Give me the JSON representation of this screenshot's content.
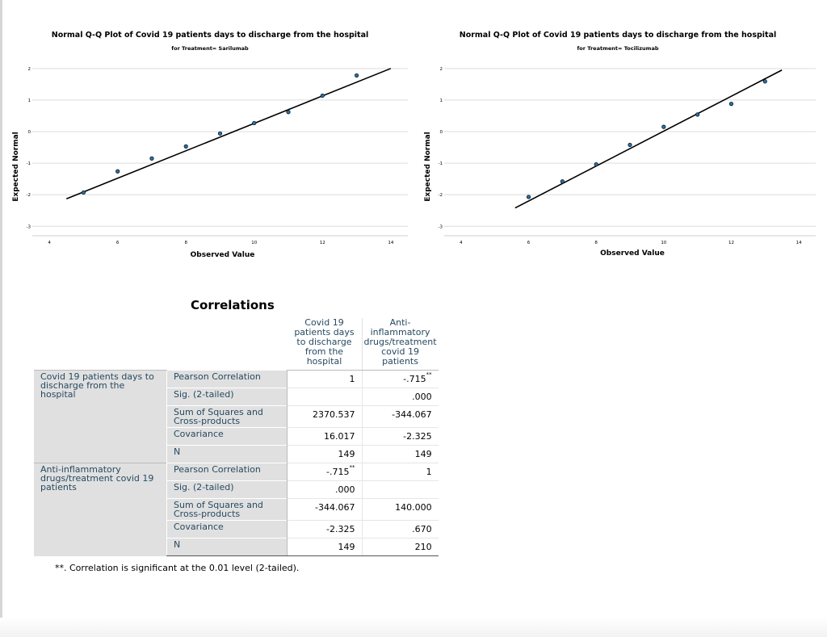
{
  "chart_data": [
    {
      "type": "scatter",
      "title": "Normal Q-Q Plot of Covid 19 patients days to discharge from the hospital",
      "subtitle": "for Treatment= Sarilumab",
      "xlabel": "Observed Value",
      "ylabel": "Expected Normal",
      "xlim": [
        3.5,
        14.5
      ],
      "ylim": [
        -3.3,
        2.2
      ],
      "xticks": [
        4,
        6,
        8,
        10,
        12,
        14
      ],
      "yticks": [
        2,
        1,
        0,
        -1,
        -2,
        -3
      ],
      "grid": "horizontal",
      "points": [
        [
          5,
          -1.93
        ],
        [
          6,
          -1.26
        ],
        [
          7,
          -0.85
        ],
        [
          8,
          -0.47
        ],
        [
          9,
          -0.06
        ],
        [
          10,
          0.27
        ],
        [
          11,
          0.62
        ],
        [
          12,
          1.14
        ],
        [
          13,
          1.78
        ]
      ],
      "ref_line": [
        [
          4.5,
          -2.13
        ],
        [
          14,
          2.0
        ]
      ]
    },
    {
      "type": "scatter",
      "title": "Normal Q-Q Plot of Covid 19 patients days to discharge from the hospital",
      "subtitle": "for Treatment= Tocilizumab",
      "xlabel": "Observed Value",
      "ylabel": "Expected Normal",
      "xlim": [
        3.5,
        14.5
      ],
      "ylim": [
        -3.3,
        2.2
      ],
      "xticks": [
        4,
        6,
        8,
        10,
        12,
        14
      ],
      "yticks": [
        2,
        1,
        0,
        -1,
        -2,
        -3
      ],
      "grid": "horizontal",
      "points": [
        [
          6,
          -2.07
        ],
        [
          7,
          -1.58
        ],
        [
          8,
          -1.04
        ],
        [
          9,
          -0.42
        ],
        [
          10,
          0.15
        ],
        [
          11,
          0.54
        ],
        [
          12,
          0.88
        ],
        [
          13,
          1.59
        ]
      ],
      "ref_line": [
        [
          5.6,
          -2.42
        ],
        [
          13.5,
          1.95
        ]
      ]
    }
  ],
  "correlations": {
    "title": "Correlations",
    "columns": [
      "Covid 19 patients days to discharge from the hospital",
      "Anti-inflammatory drugs/treatment covid 19 patients"
    ],
    "groups": [
      {
        "label": "Covid 19 patients days to discharge from the hospital",
        "rows": [
          {
            "stat": "Pearson Correlation",
            "c1": "1",
            "c2": "-.715",
            "c2_sup": "**"
          },
          {
            "stat": "Sig. (2-tailed)",
            "c1": "",
            "c2": ".000"
          },
          {
            "stat": "Sum of Squares and Cross-products",
            "c1": "2370.537",
            "c2": "-344.067"
          },
          {
            "stat": "Covariance",
            "c1": "16.017",
            "c2": "-2.325"
          },
          {
            "stat": "N",
            "c1": "149",
            "c2": "149"
          }
        ]
      },
      {
        "label": "Anti-inflammatory drugs/treatment covid 19 patients",
        "rows": [
          {
            "stat": "Pearson Correlation",
            "c1": "-.715",
            "c1_sup": "**",
            "c2": "1"
          },
          {
            "stat": "Sig. (2-tailed)",
            "c1": ".000",
            "c2": ""
          },
          {
            "stat": "Sum of Squares and Cross-products",
            "c1": "-344.067",
            "c2": "140.000"
          },
          {
            "stat": "Covariance",
            "c1": "-2.325",
            "c2": ".670"
          },
          {
            "stat": "N",
            "c1": "149",
            "c2": "210"
          }
        ]
      }
    ],
    "footnote": "**. Correlation is significant at the 0.01 level (2-tailed)."
  }
}
